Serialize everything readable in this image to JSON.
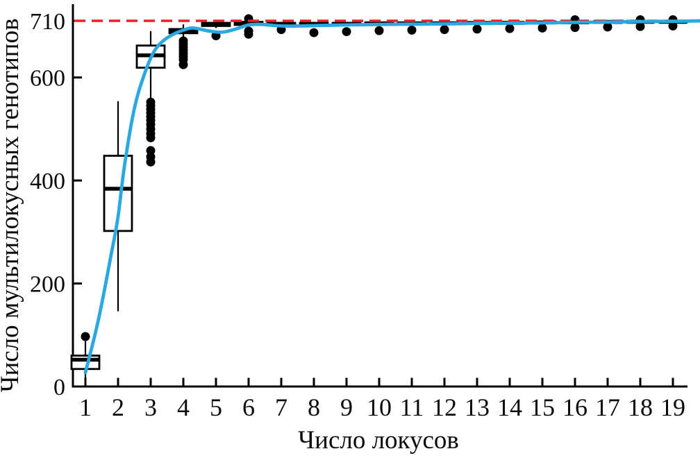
{
  "chart_data": {
    "type": "boxplot",
    "title": "",
    "x_axis": {
      "label": "Число локусов",
      "ticks": [
        1,
        2,
        3,
        4,
        5,
        6,
        7,
        8,
        9,
        10,
        11,
        12,
        13,
        14,
        15,
        16,
        17,
        18,
        19
      ]
    },
    "y_axis": {
      "label": "Число мультилокусных генотипов",
      "ticks": [
        0,
        200,
        400,
        600,
        710
      ],
      "range": [
        0,
        730
      ]
    },
    "reference_line": {
      "value": 710,
      "style": "dashed",
      "color": "#ea2227"
    },
    "boxplots": [
      {
        "x": 1,
        "whisker_low": 13,
        "q1": 34,
        "median": 52,
        "q3": 60,
        "whisker_high": 88,
        "outliers": [
          97
        ]
      },
      {
        "x": 2,
        "whisker_low": 146,
        "q1": 302,
        "median": 384,
        "q3": 448,
        "whisker_high": 554,
        "outliers": []
      },
      {
        "x": 3,
        "whisker_low": 556,
        "q1": 619,
        "median": 643,
        "q3": 662,
        "whisker_high": 690,
        "outliers": [
          552,
          545,
          538,
          531,
          524,
          517,
          509,
          500,
          491,
          483,
          458,
          446,
          436
        ]
      },
      {
        "x": 4,
        "whisker_low": 678,
        "q1": 686,
        "median": 690,
        "q3": 694,
        "whisker_high": 703,
        "outliers": [
          671,
          665,
          659,
          653,
          647,
          641,
          635,
          625
        ]
      },
      {
        "x": 5,
        "whisker_low": 696,
        "q1": 700,
        "median": 703,
        "q3": 706,
        "whisker_high": 710,
        "outliers": [
          681
        ]
      },
      {
        "x": 6,
        "whisker_low": 699,
        "q1": 702,
        "median": 705,
        "q3": 708,
        "whisker_high": 710,
        "outliers": [
          714,
          690,
          684
        ]
      },
      {
        "x": 7,
        "whisker_low": 698,
        "q1": 701,
        "median": 703,
        "q3": 706,
        "whisker_high": 708,
        "outliers": [
          693
        ]
      },
      {
        "x": 8,
        "whisker_low": 699,
        "q1": 701,
        "median": 703,
        "q3": 706,
        "whisker_high": 708,
        "outliers": [
          687
        ]
      },
      {
        "x": 9,
        "whisker_low": 700,
        "q1": 702,
        "median": 704,
        "q3": 706,
        "whisker_high": 708,
        "outliers": [
          689
        ]
      },
      {
        "x": 10,
        "whisker_low": 701,
        "q1": 703,
        "median": 705,
        "q3": 707,
        "whisker_high": 708,
        "outliers": [
          691
        ]
      },
      {
        "x": 11,
        "whisker_low": 701,
        "q1": 703,
        "median": 705,
        "q3": 707,
        "whisker_high": 709,
        "outliers": [
          692
        ]
      },
      {
        "x": 12,
        "whisker_low": 702,
        "q1": 704,
        "median": 705,
        "q3": 707,
        "whisker_high": 709,
        "outliers": [
          693
        ]
      },
      {
        "x": 13,
        "whisker_low": 702,
        "q1": 704,
        "median": 706,
        "q3": 707,
        "whisker_high": 709,
        "outliers": [
          694
        ]
      },
      {
        "x": 14,
        "whisker_low": 703,
        "q1": 705,
        "median": 706,
        "q3": 708,
        "whisker_high": 709,
        "outliers": [
          695
        ]
      },
      {
        "x": 15,
        "whisker_low": 703,
        "q1": 705,
        "median": 707,
        "q3": 708,
        "whisker_high": 709,
        "outliers": [
          696
        ]
      },
      {
        "x": 16,
        "whisker_low": 704,
        "q1": 706,
        "median": 707,
        "q3": 708,
        "whisker_high": 710,
        "outliers": [
          712,
          697
        ]
      },
      {
        "x": 17,
        "whisker_low": 704,
        "q1": 706,
        "median": 708,
        "q3": 709,
        "whisker_high": 710,
        "outliers": [
          698
        ]
      },
      {
        "x": 18,
        "whisker_low": 705,
        "q1": 707,
        "median": 708,
        "q3": 709,
        "whisker_high": 710,
        "outliers": [
          712,
          699
        ]
      },
      {
        "x": 19,
        "whisker_low": 705,
        "q1": 707,
        "median": 708,
        "q3": 710,
        "whisker_high": 710,
        "outliers": [
          712,
          700
        ]
      }
    ],
    "smooth_curve": {
      "color": "#29a8e1",
      "points": [
        [
          1,
          27
        ],
        [
          1.4,
          130
        ],
        [
          1.8,
          260
        ],
        [
          2.0,
          330
        ],
        [
          2.2,
          430
        ],
        [
          2.5,
          540
        ],
        [
          2.8,
          605
        ],
        [
          3.1,
          650
        ],
        [
          3.4,
          672
        ],
        [
          3.7,
          684
        ],
        [
          4.0,
          692
        ],
        [
          4.3,
          696
        ],
        [
          4.8,
          690
        ],
        [
          5.2,
          688
        ],
        [
          5.6,
          694
        ],
        [
          6.0,
          702
        ],
        [
          6.4,
          703
        ],
        [
          7.0,
          700
        ],
        [
          7.6,
          700
        ],
        [
          8.2,
          701
        ],
        [
          9,
          702
        ],
        [
          10,
          703
        ],
        [
          11,
          703.5
        ],
        [
          12,
          704
        ],
        [
          13,
          705
        ],
        [
          14,
          705.5
        ],
        [
          15,
          706
        ],
        [
          16,
          707
        ],
        [
          17,
          707.5
        ],
        [
          18,
          708.5
        ],
        [
          19,
          709
        ],
        [
          19.9,
          710
        ]
      ]
    },
    "colors": {
      "box_stroke": "#000000",
      "box_fill": "#ffffff",
      "outlier": "#000000",
      "axis": "#000000",
      "reference": "#ea2227",
      "curve": "#29a8e1"
    }
  }
}
